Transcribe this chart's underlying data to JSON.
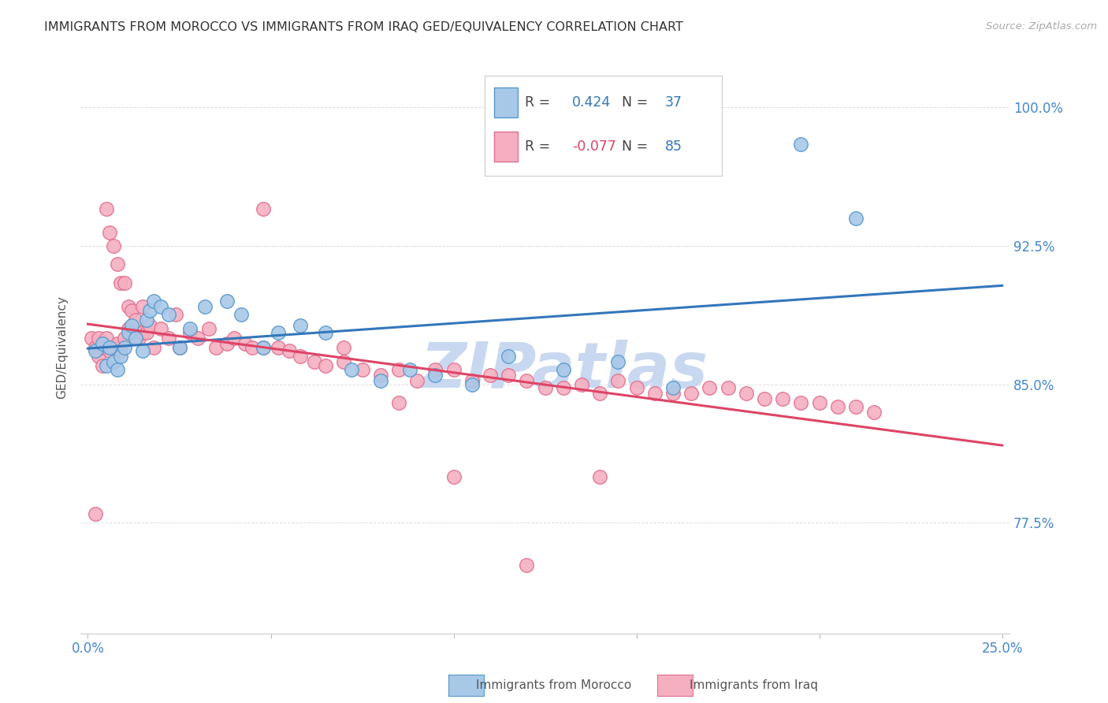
{
  "title": "IMMIGRANTS FROM MOROCCO VS IMMIGRANTS FROM IRAQ GED/EQUIVALENCY CORRELATION CHART",
  "source": "Source: ZipAtlas.com",
  "ylabel": "GED/Equivalency",
  "ytick_vals": [
    0.775,
    0.85,
    0.925,
    1.0
  ],
  "ytick_labels": [
    "77.5%",
    "85.0%",
    "92.5%",
    "100.0%"
  ],
  "xlim": [
    -0.002,
    0.252
  ],
  "ylim": [
    0.715,
    1.025
  ],
  "morocco_color": "#a8c8e8",
  "iraq_color": "#f5afc0",
  "morocco_edge": "#5599cc",
  "iraq_edge": "#e07090",
  "morocco_line_color": "#3377bb",
  "iraq_line_color": "#dd4466",
  "r_morocco": 0.424,
  "n_morocco": 37,
  "r_iraq": -0.077,
  "n_iraq": 85,
  "legend_label_morocco": "Immigrants from Morocco",
  "legend_label_iraq": "Immigrants from Iraq",
  "watermark": "ZIPatlas",
  "watermark_color": "#c8d8f0",
  "background_color": "#ffffff",
  "grid_color": "#dddddd"
}
